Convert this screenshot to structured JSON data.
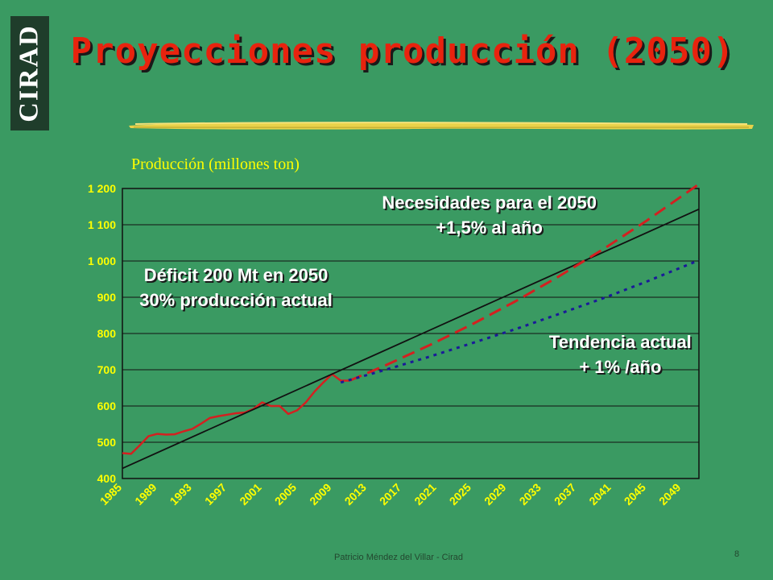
{
  "logo_text": "CIRAD",
  "title": "Proyecciones producción (2050)",
  "footer": "Patricio Méndez del Villar - Cirad",
  "page_number": "8",
  "colors": {
    "background": "#3a9a62",
    "title": "#e8230e",
    "historical": "#d42020",
    "trend": "#111111",
    "needs": "#d42020",
    "current": "#1a1a99",
    "annotation": "#ffffff",
    "ticks": "#ffff00"
  },
  "chart_data": {
    "type": "line",
    "ylabel": "Producción (millones ton)",
    "ylim": [
      400,
      1200
    ],
    "yticks": [
      400,
      500,
      600,
      700,
      800,
      900,
      1000,
      1100,
      1200
    ],
    "ytick_labels": [
      "400",
      "500",
      "600",
      "700",
      "800",
      "900",
      "1 000",
      "1 100",
      "1 200"
    ],
    "xlim": [
      1985,
      2051
    ],
    "xtick_labels": [
      "1985",
      "1989",
      "1993",
      "1997",
      "2001",
      "2005",
      "2009",
      "2013",
      "2017",
      "2021",
      "2025",
      "2029",
      "2033",
      "2037",
      "2041",
      "2045",
      "2049"
    ],
    "grid": "horizontal",
    "series": [
      {
        "id": "historical",
        "style": "solid",
        "x": [
          1985,
          1986,
          1987,
          1988,
          1989,
          1990,
          1991,
          1992,
          1993,
          1994,
          1995,
          1996,
          1997,
          1998,
          1999,
          2000,
          2001,
          2002,
          2003,
          2004,
          2005,
          2006,
          2007,
          2008,
          2009,
          2010,
          2011
        ],
        "values": [
          470,
          468,
          492,
          517,
          523,
          521,
          522,
          530,
          537,
          551,
          567,
          572,
          576,
          580,
          582,
          592,
          610,
          600,
          600,
          578,
          588,
          610,
          640,
          665,
          688,
          670,
          670
        ]
      },
      {
        "id": "trend",
        "style": "solid",
        "x": [
          1985,
          2051
        ],
        "values": [
          428,
          1143
        ]
      },
      {
        "id": "needs",
        "style": "dashed",
        "x": [
          2011,
          2015,
          2020,
          2025,
          2030,
          2035,
          2040,
          2045,
          2051
        ],
        "values": [
          670,
          711,
          766,
          825,
          889,
          958,
          1032,
          1111,
          1212
        ]
      },
      {
        "id": "current",
        "style": "dotted",
        "x": [
          2010,
          2015,
          2020,
          2025,
          2030,
          2035,
          2040,
          2045,
          2051
        ],
        "values": [
          665,
          699,
          735,
          773,
          812,
          854,
          897,
          943,
          1002
        ]
      }
    ],
    "annotations": [
      {
        "lines": [
          "Necesidades para el 2050",
          "+1,5% al año"
        ],
        "x": 2027,
        "y": 1145
      },
      {
        "lines": [
          "Déficit 200 Mt en 2050",
          "30% producción actual"
        ],
        "x": 1998,
        "y": 945
      },
      {
        "lines": [
          "Tendencia actual",
          "+ 1% /año"
        ],
        "x": 2042,
        "y": 760
      }
    ]
  }
}
